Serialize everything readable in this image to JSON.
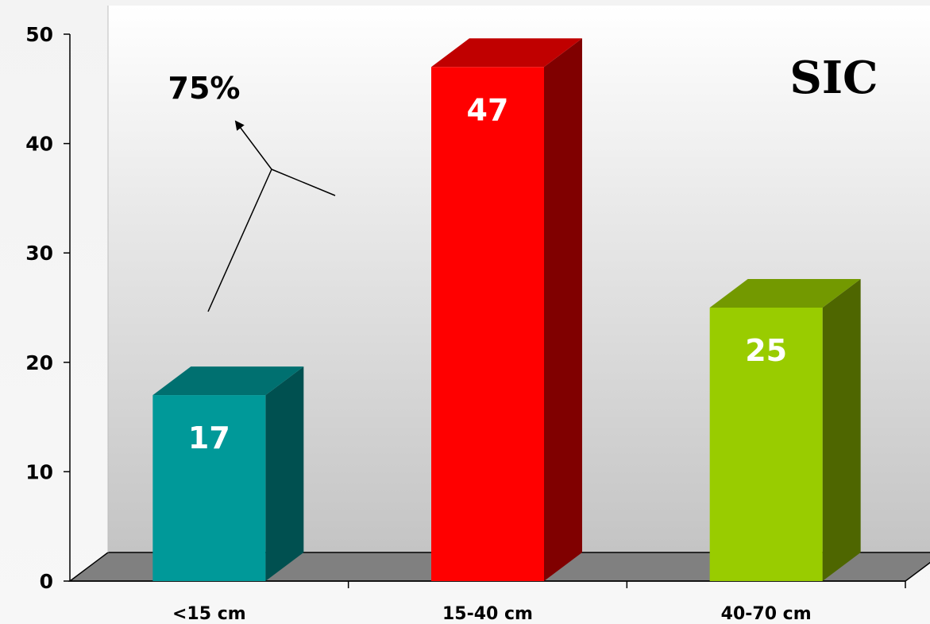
{
  "chart_data": {
    "type": "bar",
    "title": "SIC",
    "categories": [
      "<15 cm",
      "15-40 cm",
      "40-70 cm"
    ],
    "values": [
      17,
      47,
      25
    ],
    "data_labels": [
      "17",
      "47",
      "25"
    ],
    "ylim": [
      0,
      50
    ],
    "yticks": [
      0,
      10,
      20,
      30,
      40,
      50
    ],
    "xlabel": "",
    "ylabel": "",
    "grid": false,
    "legend": "none",
    "three_d": true,
    "colors": {
      "bars": [
        "#009999",
        "#ff0000",
        "#99cc00"
      ],
      "bar_sides": [
        "#005050",
        "#800000",
        "#4e6600"
      ],
      "bar_tops": [
        "#007070",
        "#c00000",
        "#739900"
      ],
      "floor": "#808080",
      "wall_top": "#ffffff",
      "wall_bottom": "#c4c4c4"
    },
    "annotation": {
      "text": "75%"
    }
  }
}
